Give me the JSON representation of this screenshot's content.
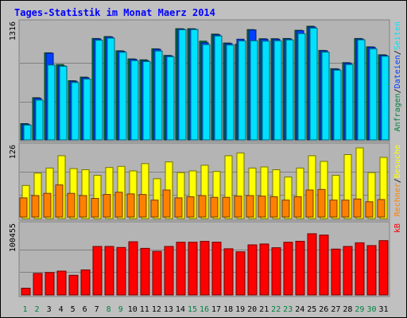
{
  "chart_data": {
    "type": "bar",
    "title": "Tages-Statistik im Monat Maerz 2014",
    "categories": [
      "1",
      "2",
      "3",
      "4",
      "5",
      "6",
      "7",
      "8",
      "9",
      "10",
      "11",
      "12",
      "13",
      "14",
      "15",
      "16",
      "17",
      "18",
      "19",
      "20",
      "21",
      "22",
      "23",
      "24",
      "25",
      "26",
      "27",
      "28",
      "29",
      "30",
      "31"
    ],
    "weekend_days": [
      "1",
      "2",
      "8",
      "9",
      "15",
      "16",
      "22",
      "23",
      "29",
      "30"
    ],
    "colors": {
      "background": "#c0c0c0",
      "panel": "#b4b4b4",
      "frame_dark": "#808080",
      "title": "#0000ff",
      "weekday_label": "#000000",
      "weekend_label": "#008040",
      "anfragen": "#008040",
      "dateien": "#0040ff",
      "seiten": "#00e0ff",
      "besuche": "#ffff00",
      "rechner": "#ff8000",
      "kb": "#ff0000"
    },
    "panels": [
      {
        "name": "hits",
        "ymax_label": "1316",
        "ymax": 1316,
        "right_labels": [
          {
            "text": "Anfragen",
            "color": "#008040"
          },
          {
            "text": "/",
            "color": "#000000"
          },
          {
            "text": "Dateien",
            "color": "#0040ff"
          },
          {
            "text": "/",
            "color": "#000000"
          },
          {
            "text": "Seiten",
            "color": "#00e0ff"
          }
        ],
        "series": [
          {
            "name": "Anfragen",
            "values": [
              186,
              482,
              995,
              860,
              676,
              717,
              1158,
              1180,
              1017,
              925,
              915,
              1040,
              965,
              1270,
              1270,
              1127,
              1208,
              1106,
              1093,
              1260,
              1155,
              1155,
              1158,
              1252,
              1298,
              1022,
              813,
              882,
              1158,
              1063,
              972
            ]
          },
          {
            "name": "Dateien",
            "values": [
              180,
              475,
              990,
              845,
              670,
              710,
              1153,
              1175,
              1012,
              920,
              905,
              1035,
              960,
              1266,
              1265,
              1110,
              1200,
              1100,
              1150,
              1255,
              1150,
              1150,
              1153,
              1247,
              1290,
              1017,
              808,
              877,
              1153,
              1058,
              967
            ]
          },
          {
            "name": "Seiten",
            "values": [
              170,
              455,
              855,
              840,
              655,
              695,
              1138,
              1162,
              1000,
              905,
              895,
              1015,
              950,
              1258,
              1260,
              1088,
              1186,
              1084,
              1130,
              1132,
              1127,
              1132,
              1142,
              1213,
              1276,
              1002,
              796,
              860,
              1143,
              1040,
              955
            ]
          }
        ]
      },
      {
        "name": "visits",
        "ymax_label": "126",
        "ymax": 126,
        "right_labels": [
          {
            "text": "Rechner",
            "color": "#ff8000"
          },
          {
            "text": "/",
            "color": "#000000"
          },
          {
            "text": "Besuche",
            "color": "#ffff00"
          }
        ],
        "series": [
          {
            "name": "Besuche",
            "values": [
              59,
              81,
              90,
              112,
              89,
              87,
              77,
              91,
              93,
              85,
              98,
              71,
              101,
              82,
              85,
              95,
              84,
              112,
              117,
              90,
              92,
              87,
              74,
              90,
              112,
              102,
              77,
              114,
              126,
              82,
              109
            ]
          },
          {
            "name": "Rechner",
            "values": [
              37,
              41,
              45,
              60,
              45,
              41,
              36,
              43,
              47,
              44,
              43,
              33,
              51,
              37,
              39,
              41,
              38,
              38,
              40,
              41,
              40,
              39,
              33,
              39,
              51,
              52,
              33,
              33,
              35,
              30,
              34
            ]
          }
        ]
      },
      {
        "name": "kb",
        "ymax_label": "100455",
        "ymax": 100455,
        "right_labels": [
          {
            "text": "kB",
            "color": "#ff0000"
          }
        ],
        "series": [
          {
            "name": "kB",
            "values": [
              9900,
              31600,
              32900,
              35000,
              28800,
              36800,
              71200,
              71200,
              69700,
              78100,
              68400,
              64000,
              71200,
              77400,
              77400,
              78700,
              77600,
              67900,
              63400,
              73600,
              74900,
              69400,
              77400,
              78800,
              90000,
              88000,
              67400,
              71300,
              76600,
              72500,
              79800
            ]
          }
        ]
      }
    ]
  }
}
